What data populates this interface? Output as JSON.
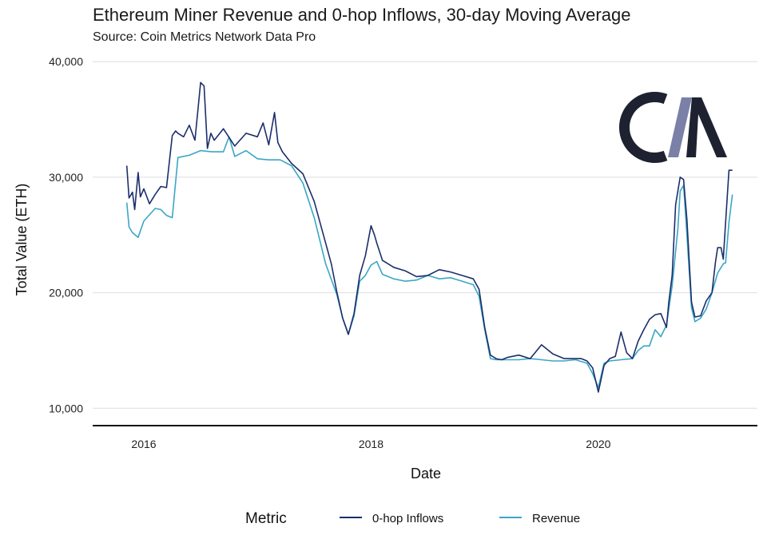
{
  "chart_data": {
    "type": "line",
    "title": "Ethereum Miner Revenue and 0-hop Inflows, 30-day Moving Average",
    "subtitle": "Source: Coin Metrics Network Data Pro",
    "xlabel": "Date",
    "ylabel": "Total Value (ETH)",
    "xlim": [
      2015.55,
      2021.4
    ],
    "ylim": [
      8500,
      40500
    ],
    "x_ticks": [
      2016,
      2018,
      2020
    ],
    "x_tick_labels": [
      "2016",
      "2018",
      "2020"
    ],
    "y_ticks": [
      10000,
      20000,
      30000,
      40000
    ],
    "y_tick_labels": [
      "10,000",
      "20,000",
      "30,000",
      "40,000"
    ],
    "legend": {
      "title": "Metric",
      "position": "bottom"
    },
    "logo_text": "CM",
    "series": [
      {
        "name": "0-hop Inflows",
        "color": "#1c2f6b",
        "x": [
          2015.85,
          2015.87,
          2015.9,
          2015.92,
          2015.95,
          2015.97,
          2016.0,
          2016.05,
          2016.1,
          2016.15,
          2016.2,
          2016.25,
          2016.28,
          2016.3,
          2016.35,
          2016.4,
          2016.45,
          2016.5,
          2016.53,
          2016.56,
          2016.59,
          2016.62,
          2016.7,
          2016.8,
          2016.9,
          2017.0,
          2017.05,
          2017.1,
          2017.15,
          2017.18,
          2017.22,
          2017.3,
          2017.4,
          2017.5,
          2017.6,
          2017.65,
          2017.7,
          2017.75,
          2017.8,
          2017.85,
          2017.9,
          2017.95,
          2018.0,
          2018.03,
          2018.05,
          2018.1,
          2018.2,
          2018.3,
          2018.4,
          2018.5,
          2018.6,
          2018.7,
          2018.8,
          2018.9,
          2018.95,
          2019.0,
          2019.05,
          2019.1,
          2019.15,
          2019.2,
          2019.3,
          2019.4,
          2019.5,
          2019.6,
          2019.7,
          2019.8,
          2019.85,
          2019.9,
          2019.95,
          2020.0,
          2020.05,
          2020.1,
          2020.15,
          2020.2,
          2020.25,
          2020.3,
          2020.35,
          2020.4,
          2020.45,
          2020.5,
          2020.55,
          2020.6,
          2020.62,
          2020.65,
          2020.68,
          2020.72,
          2020.75,
          2020.78,
          2020.82,
          2020.85,
          2020.9,
          2020.95,
          2021.0,
          2021.03,
          2021.05,
          2021.08,
          2021.1,
          2021.12,
          2021.15,
          2021.18
        ],
        "y": [
          31000,
          28200,
          28700,
          27200,
          30400,
          28300,
          29000,
          27700,
          28500,
          29200,
          29100,
          33600,
          34000,
          33800,
          33500,
          34500,
          33200,
          38200,
          37900,
          32500,
          33800,
          33200,
          34200,
          32700,
          33800,
          33500,
          34700,
          32800,
          35600,
          33000,
          32200,
          31200,
          30300,
          27900,
          24300,
          22500,
          20000,
          17800,
          16400,
          18200,
          21500,
          23200,
          25800,
          25000,
          24300,
          22800,
          22200,
          21900,
          21400,
          21500,
          22000,
          21800,
          21500,
          21200,
          20300,
          17000,
          14600,
          14300,
          14200,
          14400,
          14600,
          14300,
          15500,
          14700,
          14300,
          14300,
          14300,
          14100,
          13500,
          11400,
          13700,
          14300,
          14500,
          16600,
          14800,
          14300,
          15800,
          16800,
          17700,
          18100,
          18200,
          17000,
          19200,
          21500,
          27600,
          30000,
          29800,
          26300,
          19200,
          17900,
          18000,
          19300,
          20000,
          22600,
          23900,
          23900,
          22900,
          26100,
          30600,
          30600
        ]
      },
      {
        "name": "Revenue",
        "color": "#3aa7c4",
        "x": [
          2015.85,
          2015.87,
          2015.9,
          2015.95,
          2016.0,
          2016.1,
          2016.15,
          2016.2,
          2016.25,
          2016.3,
          2016.4,
          2016.5,
          2016.6,
          2016.7,
          2016.75,
          2016.8,
          2016.9,
          2017.0,
          2017.1,
          2017.2,
          2017.3,
          2017.4,
          2017.5,
          2017.6,
          2017.7,
          2017.75,
          2017.8,
          2017.85,
          2017.9,
          2017.95,
          2018.0,
          2018.05,
          2018.1,
          2018.2,
          2018.3,
          2018.4,
          2018.5,
          2018.6,
          2018.7,
          2018.8,
          2018.9,
          2018.95,
          2019.0,
          2019.05,
          2019.1,
          2019.2,
          2019.3,
          2019.4,
          2019.5,
          2019.6,
          2019.7,
          2019.8,
          2019.9,
          2019.95,
          2020.0,
          2020.05,
          2020.1,
          2020.2,
          2020.3,
          2020.35,
          2020.4,
          2020.45,
          2020.5,
          2020.55,
          2020.6,
          2020.65,
          2020.7,
          2020.72,
          2020.75,
          2020.78,
          2020.82,
          2020.85,
          2020.9,
          2020.95,
          2021.0,
          2021.05,
          2021.1,
          2021.12,
          2021.15,
          2021.18
        ],
        "y": [
          27800,
          25700,
          25200,
          24800,
          26200,
          27300,
          27200,
          26700,
          26500,
          31700,
          31900,
          32300,
          32200,
          32200,
          33500,
          31800,
          32300,
          31600,
          31500,
          31500,
          31000,
          29500,
          26500,
          22500,
          19800,
          17800,
          16400,
          18000,
          21000,
          21500,
          22400,
          22700,
          21600,
          21200,
          21000,
          21100,
          21500,
          21200,
          21300,
          21000,
          20700,
          19700,
          16800,
          14300,
          14200,
          14200,
          14200,
          14300,
          14200,
          14100,
          14100,
          14200,
          13900,
          13000,
          11800,
          13900,
          14100,
          14200,
          14300,
          15000,
          15400,
          15400,
          16800,
          16200,
          17200,
          20600,
          25500,
          28800,
          29300,
          25000,
          18700,
          17500,
          17800,
          18600,
          20000,
          21700,
          22500,
          22600,
          26100,
          28500
        ]
      }
    ]
  }
}
